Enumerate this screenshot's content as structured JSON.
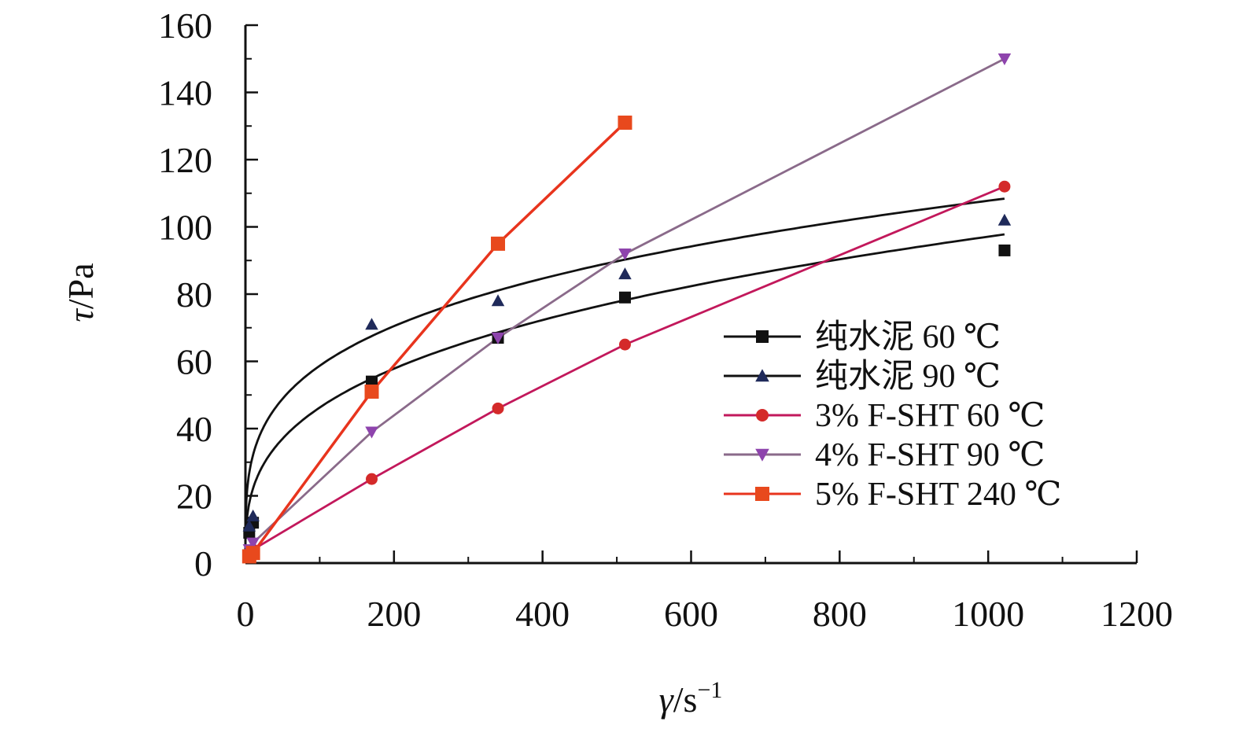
{
  "chart_data": {
    "type": "scatter",
    "xlabel": {
      "symbol": "γ",
      "unit": "/s",
      "exp": "−1"
    },
    "ylabel": {
      "symbol": "τ",
      "unit": "/Pa"
    },
    "xlim": [
      0,
      1200
    ],
    "ylim": [
      0,
      160
    ],
    "x_ticks": [
      "0",
      "200",
      "400",
      "600",
      "800",
      "1000",
      "1200"
    ],
    "y_ticks": [
      "0",
      "20",
      "40",
      "60",
      "80",
      "100",
      "120",
      "140",
      "160"
    ],
    "x_tick_values": [
      0,
      200,
      400,
      600,
      800,
      1000,
      1200
    ],
    "y_tick_values": [
      0,
      20,
      40,
      60,
      80,
      100,
      120,
      140,
      160
    ],
    "minor_step_x": 100,
    "minor_step_y": 10,
    "grid": false,
    "legend_position": "right",
    "series": [
      {
        "name": "纯水泥 60 ℃",
        "marker": "square",
        "color": "#111111",
        "line_color": "#111111",
        "x": [
          5.1,
          10.2,
          170,
          340,
          511,
          1022
        ],
        "y": [
          9,
          12,
          54,
          67,
          79,
          93
        ],
        "fit": {
          "model": "power",
          "a": 10.5,
          "b": 0.322,
          "x_range": [
            0.5,
            1022
          ]
        }
      },
      {
        "name": "纯水泥 90 ℃",
        "marker": "triangle-up",
        "color": "#1f2a5a",
        "line_color": "#111111",
        "x": [
          5.1,
          10.2,
          170,
          340,
          511,
          1022
        ],
        "y": [
          11,
          14,
          71,
          78,
          86,
          102
        ],
        "fit": {
          "model": "power",
          "a": 17.4,
          "b": 0.264,
          "x_range": [
            0.5,
            1022
          ]
        }
      },
      {
        "name": "3% F-SHT 60 ℃",
        "marker": "circle",
        "color": "#d42a2a",
        "line_color": "#c2185b",
        "x": [
          5.1,
          10.2,
          170,
          340,
          511,
          1022
        ],
        "y": [
          3,
          4,
          25,
          46,
          65,
          112
        ],
        "fit": {
          "model": "polyline"
        }
      },
      {
        "name": "4% F-SHT 90 ℃",
        "marker": "triangle-down",
        "color": "#8e44ad",
        "line_color": "#8a6a8a",
        "x": [
          5.1,
          10.2,
          170,
          340,
          511,
          1022
        ],
        "y": [
          4,
          6,
          39,
          67,
          92,
          150
        ],
        "fit": {
          "model": "polyline"
        }
      },
      {
        "name": "5% F-SHT 240 ℃",
        "marker": "square",
        "color": "#e8491d",
        "line_color": "#e8341d",
        "x": [
          5.1,
          10.2,
          170,
          340,
          511
        ],
        "y": [
          2,
          3,
          51,
          95,
          131
        ],
        "fit": {
          "model": "polyline"
        }
      }
    ]
  }
}
